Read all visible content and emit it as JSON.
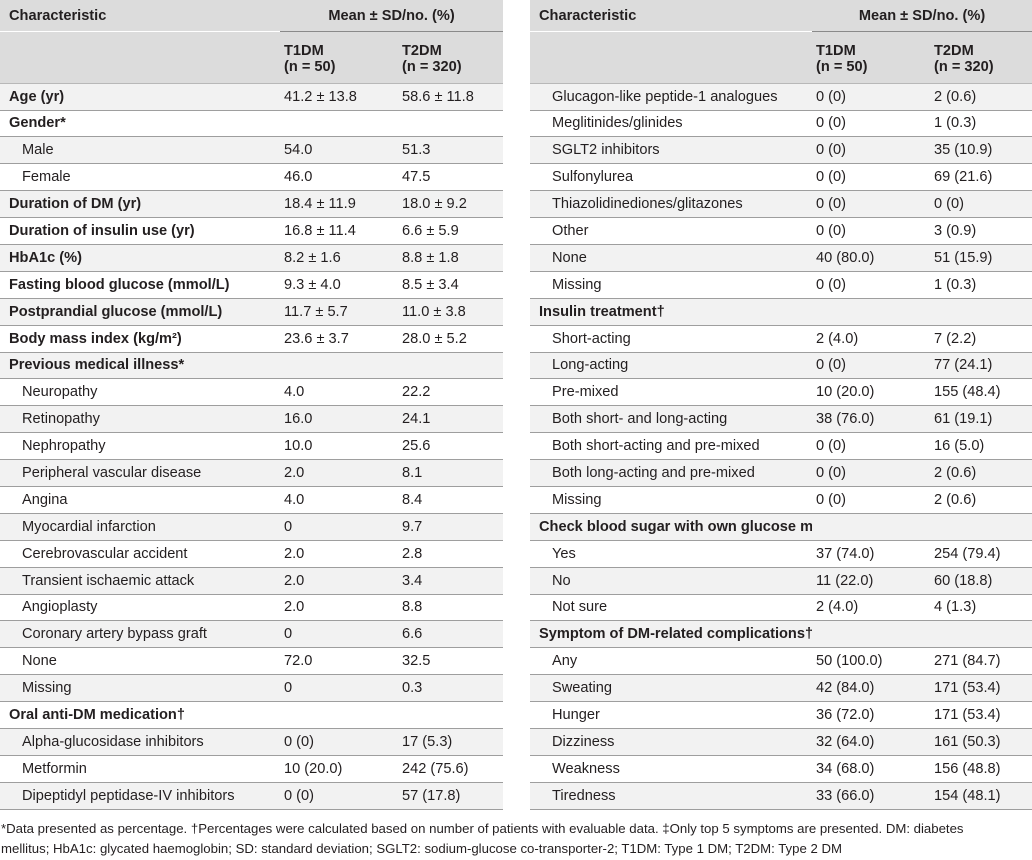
{
  "left": {
    "header": {
      "characteristic": "Characteristic",
      "mean": "Mean ± SD/no. (%)",
      "col1": "T1DM",
      "col1n": "(n = 50)",
      "col2": "T2DM",
      "col2n": "(n = 320)"
    },
    "rows": [
      {
        "label": "Age (yr)",
        "t1": "41.2 ± 13.8",
        "t2": "58.6 ± 11.8",
        "bold": true
      },
      {
        "label": "Gender*",
        "t1": "",
        "t2": "",
        "bold": true
      },
      {
        "label": "Male",
        "t1": "54.0",
        "t2": "51.3",
        "indent": true
      },
      {
        "label": "Female",
        "t1": "46.0",
        "t2": "47.5",
        "indent": true
      },
      {
        "label": "Duration of DM (yr)",
        "t1": "18.4 ± 11.9",
        "t2": "18.0 ± 9.2",
        "bold": true
      },
      {
        "label": "Duration of insulin use (yr)",
        "t1": "16.8 ± 11.4",
        "t2": "6.6 ± 5.9",
        "bold": true
      },
      {
        "label": "HbA1c (%)",
        "t1": "8.2 ± 1.6",
        "t2": "8.8 ± 1.8",
        "bold": true
      },
      {
        "label": "Fasting blood glucose (mmol/L)",
        "t1": "9.3 ± 4.0",
        "t2": "8.5 ± 3.4",
        "bold": true
      },
      {
        "label": "Postprandial glucose (mmol/L)",
        "t1": "11.7 ± 5.7",
        "t2": "11.0 ± 3.8",
        "bold": true
      },
      {
        "label": "Body mass index (kg/m²)",
        "t1": "23.6 ± 3.7",
        "t2": "28.0 ± 5.2",
        "bold": true
      },
      {
        "label": "Previous medical illness*",
        "t1": "",
        "t2": "",
        "bold": true
      },
      {
        "label": "Neuropathy",
        "t1": "4.0",
        "t2": "22.2",
        "indent": true
      },
      {
        "label": "Retinopathy",
        "t1": "16.0",
        "t2": "24.1",
        "indent": true
      },
      {
        "label": "Nephropathy",
        "t1": "10.0",
        "t2": "25.6",
        "indent": true
      },
      {
        "label": "Peripheral vascular disease",
        "t1": "2.0",
        "t2": "8.1",
        "indent": true
      },
      {
        "label": "Angina",
        "t1": "4.0",
        "t2": "8.4",
        "indent": true
      },
      {
        "label": "Myocardial infarction",
        "t1": "0",
        "t2": "9.7",
        "indent": true
      },
      {
        "label": "Cerebrovascular accident",
        "t1": "2.0",
        "t2": "2.8",
        "indent": true
      },
      {
        "label": "Transient ischaemic attack",
        "t1": "2.0",
        "t2": "3.4",
        "indent": true
      },
      {
        "label": "Angioplasty",
        "t1": "2.0",
        "t2": "8.8",
        "indent": true
      },
      {
        "label": "Coronary artery bypass graft",
        "t1": "0",
        "t2": "6.6",
        "indent": true
      },
      {
        "label": "None",
        "t1": "72.0",
        "t2": "32.5",
        "indent": true
      },
      {
        "label": "Missing",
        "t1": "0",
        "t2": "0.3",
        "indent": true
      },
      {
        "label": "Oral anti-DM medication†",
        "t1": "",
        "t2": "",
        "bold": true
      },
      {
        "label": "Alpha-glucosidase inhibitors",
        "t1": "0 (0)",
        "t2": "17 (5.3)",
        "indent": true
      },
      {
        "label": "Metformin",
        "t1": "10 (20.0)",
        "t2": "242 (75.6)",
        "indent": true
      },
      {
        "label": "Dipeptidyl peptidase-IV inhibitors",
        "t1": "0 (0)",
        "t2": "57 (17.8)",
        "indent": true
      }
    ]
  },
  "right": {
    "header": {
      "characteristic": "Characteristic",
      "mean": "Mean ± SD/no. (%)",
      "col1": "T1DM",
      "col1n": "(n = 50)",
      "col2": "T2DM",
      "col2n": "(n = 320)"
    },
    "rows": [
      {
        "label": "Glucagon-like peptide-1 analogues",
        "t1": "0 (0)",
        "t2": "2 (0.6)",
        "indent": true
      },
      {
        "label": "Meglitinides/glinides",
        "t1": "0 (0)",
        "t2": "1 (0.3)",
        "indent": true
      },
      {
        "label": "SGLT2 inhibitors",
        "t1": "0 (0)",
        "t2": "35 (10.9)",
        "indent": true
      },
      {
        "label": "Sulfonylurea",
        "t1": "0 (0)",
        "t2": "69 (21.6)",
        "indent": true
      },
      {
        "label": "Thiazolidinediones/glitazones",
        "t1": "0 (0)",
        "t2": "0 (0)",
        "indent": true
      },
      {
        "label": "Other",
        "t1": "0 (0)",
        "t2": "3 (0.9)",
        "indent": true
      },
      {
        "label": "None",
        "t1": "40 (80.0)",
        "t2": "51 (15.9)",
        "indent": true
      },
      {
        "label": "Missing",
        "t1": "0 (0)",
        "t2": "1 (0.3)",
        "indent": true
      },
      {
        "label": "Insulin treatment†",
        "t1": "",
        "t2": "",
        "bold": true
      },
      {
        "label": "Short-acting",
        "t1": "2 (4.0)",
        "t2": "7 (2.2)",
        "indent": true
      },
      {
        "label": "Long-acting",
        "t1": "0 (0)",
        "t2": "77 (24.1)",
        "indent": true
      },
      {
        "label": "Pre-mixed",
        "t1": "10 (20.0)",
        "t2": "155 (48.4)",
        "indent": true
      },
      {
        "label": "Both short- and long-acting",
        "t1": "38 (76.0)",
        "t2": "61 (19.1)",
        "indent": true
      },
      {
        "label": "Both short-acting and pre-mixed",
        "t1": "0 (0)",
        "t2": "16 (5.0)",
        "indent": true
      },
      {
        "label": "Both long-acting and pre-mixed",
        "t1": "0 (0)",
        "t2": "2 (0.6)",
        "indent": true
      },
      {
        "label": "Missing",
        "t1": "0 (0)",
        "t2": "2 (0.6)",
        "indent": true
      },
      {
        "label": "Check blood sugar with own glucose meter†",
        "t1": "",
        "t2": "",
        "bold": true
      },
      {
        "label": "Yes",
        "t1": "37 (74.0)",
        "t2": "254 (79.4)",
        "indent": true
      },
      {
        "label": "No",
        "t1": "11 (22.0)",
        "t2": "60 (18.8)",
        "indent": true
      },
      {
        "label": "Not sure",
        "t1": "2 (4.0)",
        "t2": "4 (1.3)",
        "indent": true
      },
      {
        "label": "Symptom of DM-related complications†,‡",
        "t1": "",
        "t2": "",
        "bold": true
      },
      {
        "label": "Any",
        "t1": "50 (100.0)",
        "t2": "271 (84.7)",
        "indent": true
      },
      {
        "label": "Sweating",
        "t1": "42 (84.0)",
        "t2": "171 (53.4)",
        "indent": true
      },
      {
        "label": "Hunger",
        "t1": "36 (72.0)",
        "t2": "171 (53.4)",
        "indent": true
      },
      {
        "label": "Dizziness",
        "t1": "32 (64.0)",
        "t2": "161 (50.3)",
        "indent": true
      },
      {
        "label": "Weakness",
        "t1": "34 (68.0)",
        "t2": "156 (48.8)",
        "indent": true
      },
      {
        "label": "Tiredness",
        "t1": "33 (66.0)",
        "t2": "154 (48.1)",
        "indent": true
      }
    ]
  },
  "footnote": {
    "line1": "*Data presented as percentage. †Percentages were calculated based on number of patients with evaluable data. ‡Only top 5 symptoms are presented. DM: diabetes",
    "line2": "mellitus; HbA1c: glycated haemoglobin; SD: standard deviation; SGLT2: sodium-glucose co-transporter-2; T1DM: Type 1 DM; T2DM: Type 2 DM"
  }
}
